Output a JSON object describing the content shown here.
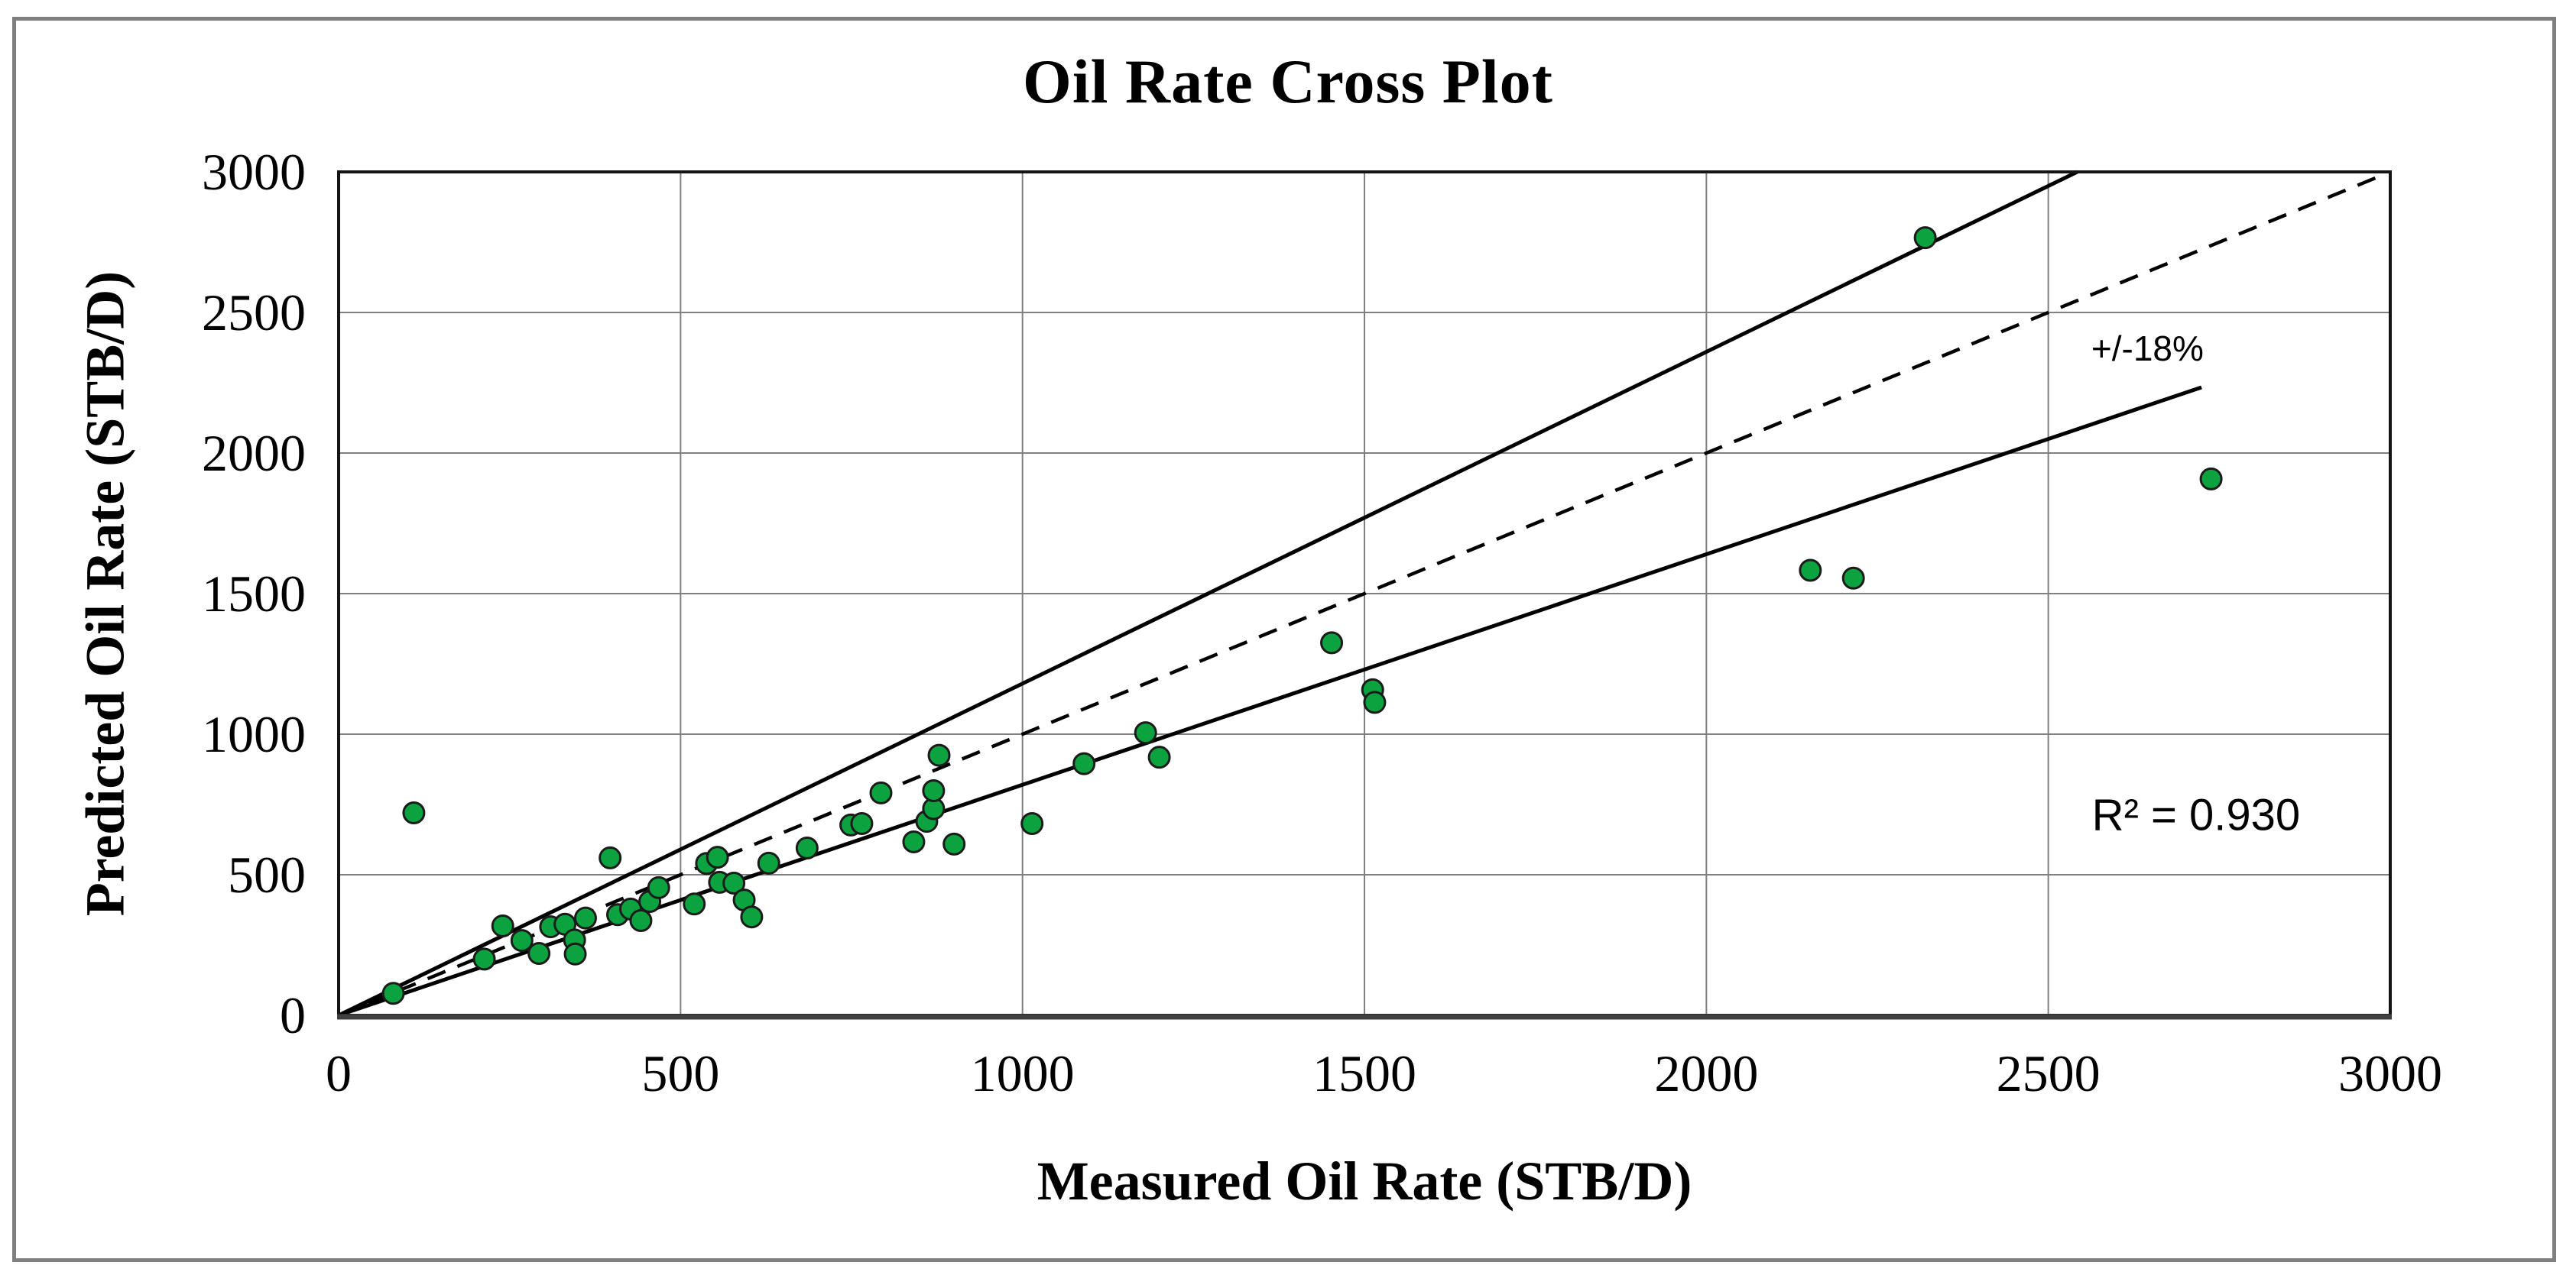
{
  "chart_data": {
    "type": "scatter",
    "title": "Oil Rate Cross Plot",
    "xlabel": "Measured Oil Rate (STB/D)",
    "ylabel": "Predicted Oil Rate (STB/D)",
    "xlim": [
      0,
      3000
    ],
    "ylim": [
      0,
      3000
    ],
    "x_ticks": [
      0,
      500,
      1000,
      1500,
      2000,
      2500,
      3000
    ],
    "y_ticks": [
      0,
      500,
      1000,
      1500,
      2000,
      2500,
      3000
    ],
    "grid": true,
    "grid_color": "#808080",
    "marker_color": "#0aa33f",
    "marker_outline": "#1b1b1b",
    "series_name": "oil-rate-points",
    "points": [
      [
        80,
        78
      ],
      [
        110,
        720
      ],
      [
        213,
        200
      ],
      [
        240,
        318
      ],
      [
        268,
        266
      ],
      [
        293,
        220
      ],
      [
        310,
        315
      ],
      [
        331,
        324
      ],
      [
        345,
        268
      ],
      [
        346,
        218
      ],
      [
        361,
        346
      ],
      [
        397,
        560
      ],
      [
        408,
        358
      ],
      [
        427,
        378
      ],
      [
        442,
        337
      ],
      [
        455,
        405
      ],
      [
        468,
        454
      ],
      [
        520,
        396
      ],
      [
        538,
        540
      ],
      [
        554,
        562
      ],
      [
        557,
        473
      ],
      [
        578,
        470
      ],
      [
        593,
        410
      ],
      [
        604,
        350
      ],
      [
        629,
        541
      ],
      [
        685,
        595
      ],
      [
        749,
        677
      ],
      [
        765,
        682
      ],
      [
        793,
        791
      ],
      [
        841,
        617
      ],
      [
        860,
        690
      ],
      [
        870,
        735
      ],
      [
        870,
        799
      ],
      [
        878,
        925
      ],
      [
        900,
        609
      ],
      [
        1014,
        682
      ],
      [
        1090,
        895
      ],
      [
        1180,
        1005
      ],
      [
        1200,
        918
      ],
      [
        1452,
        1325
      ],
      [
        1512,
        1158
      ],
      [
        1515,
        1113
      ],
      [
        2152,
        1583
      ],
      [
        2215,
        1555
      ],
      [
        2320,
        2766
      ],
      [
        2738,
        1908
      ]
    ],
    "reference_lines": [
      {
        "name": "plus-18pct-line",
        "slope": 1.18,
        "x_start": 0,
        "x_end": 2700,
        "style": "solid"
      },
      {
        "name": "unity-line",
        "slope": 1.0,
        "x_start": 0,
        "x_end": 2992,
        "style": "dashed"
      },
      {
        "name": "minus-18pct-line",
        "slope": 0.82,
        "x_start": 0,
        "x_end": 2724,
        "style": "solid"
      }
    ],
    "annotations": [
      {
        "name": "band-label",
        "text": "+/-18%",
        "x": 2645,
        "y": 2372
      },
      {
        "name": "r-squared-label",
        "text": "R² = 0.930",
        "x": 2716,
        "y": 712
      }
    ],
    "legend": "none"
  }
}
